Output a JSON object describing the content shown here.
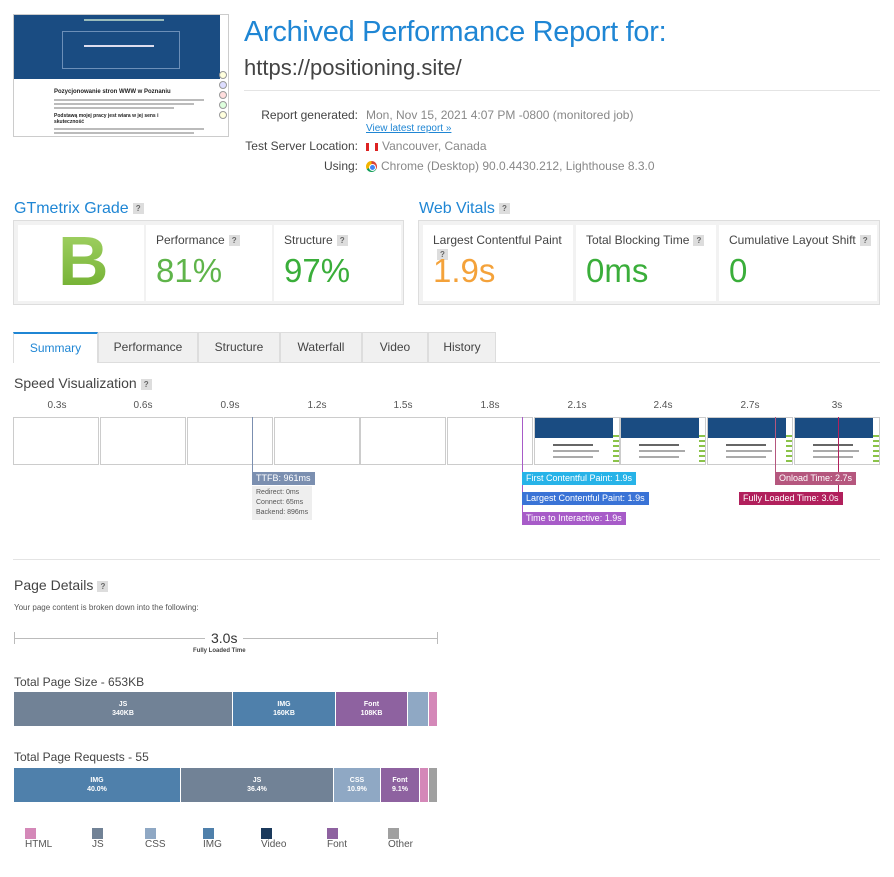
{
  "header": {
    "title": "Archived Performance Report for:",
    "url": "https://positioning.site/",
    "report_generated_label": "Report generated:",
    "report_generated_value": "Mon, Nov 15, 2021 4:07 PM -0800 (monitored job)",
    "view_latest_link": "View latest report »",
    "server_location_label": "Test Server Location:",
    "server_location_value": "Vancouver, Canada",
    "using_label": "Using:",
    "using_value": "Chrome (Desktop) 90.0.4430.212, Lighthouse 8.3.0"
  },
  "thumbnail": {
    "hero_title": "Pozycjonowanie stron WWW w Poznaniu",
    "subheading": "Podstawą mojej pracy jest wiara w jej sens i skuteczność"
  },
  "gtmetrix": {
    "heading": "GTmetrix Grade",
    "grade": "B",
    "performance_label": "Performance",
    "performance_value": "81%",
    "structure_label": "Structure",
    "structure_value": "97%"
  },
  "web_vitals": {
    "heading": "Web Vitals",
    "lcp_label": "Largest Contentful Paint",
    "lcp_value": "1.9s",
    "tbt_label": "Total Blocking Time",
    "tbt_value": "0ms",
    "cls_label": "Cumulative Layout Shift",
    "cls_value": "0"
  },
  "tabs": [
    "Summary",
    "Performance",
    "Structure",
    "Waterfall",
    "Video",
    "History"
  ],
  "speed_viz": {
    "heading": "Speed Visualization",
    "times": [
      "0.3s",
      "0.6s",
      "0.9s",
      "1.2s",
      "1.5s",
      "1.8s",
      "2.1s",
      "2.4s",
      "2.7s",
      "3s"
    ],
    "ttfb": "TTFB: 961ms",
    "redirect": "Redirect: 0ms",
    "connect": "Connect: 65ms",
    "backend": "Backend: 896ms",
    "fcp": "First Contentful Paint: 1.9s",
    "lcp": "Largest Contentful Paint: 1.9s",
    "tti": "Time to Interactive: 1.9s",
    "onload": "Onload Time: 2.7s",
    "fully_loaded": "Fully Loaded Time: 3.0s"
  },
  "page_details": {
    "heading": "Page Details",
    "intro": "Your page content is broken down into the following:",
    "fully_loaded_value": "3.0s",
    "fully_loaded_label": "Fully Loaded Time",
    "size_heading": "Total Page Size - 653KB",
    "size_segments": [
      {
        "name": "JS",
        "value": "340KB"
      },
      {
        "name": "IMG",
        "value": "160KB"
      },
      {
        "name": "Font",
        "value": "108KB"
      }
    ],
    "requests_heading": "Total Page Requests - 55",
    "request_segments": [
      {
        "name": "IMG",
        "value": "40.0%"
      },
      {
        "name": "JS",
        "value": "36.4%"
      },
      {
        "name": "CSS",
        "value": "10.9%"
      },
      {
        "name": "Font",
        "value": "9.1%"
      }
    ],
    "legend": [
      "HTML",
      "JS",
      "CSS",
      "IMG",
      "Video",
      "Font",
      "Other"
    ]
  },
  "colors": {
    "accent": "#1f86d4",
    "html": "#d488b8",
    "js": "#718296",
    "css": "#8fa8c4",
    "img": "#4f80ab",
    "video": "#1b3a5c",
    "font": "#8e62a0",
    "other": "#a0a0a0",
    "ttfb": "#7b8fb0",
    "fcp": "#27b3e8",
    "lcp": "#3a73d6",
    "tti": "#a75bc8",
    "onload": "#b5577e",
    "fully_loaded": "#b1205c"
  }
}
